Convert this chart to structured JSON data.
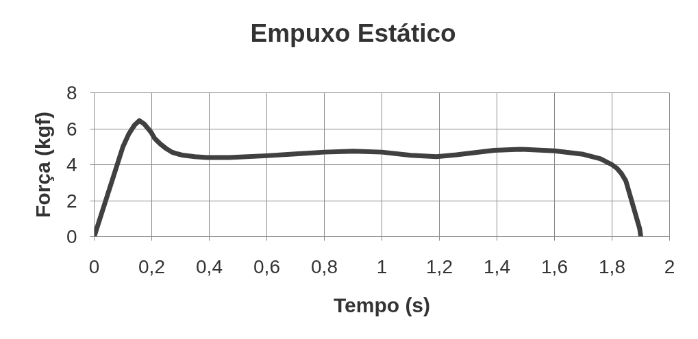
{
  "chart_data": {
    "type": "line",
    "title": "Empuxo Estático",
    "xlabel": "Tempo (s)",
    "ylabel": "Força (kgf)",
    "x": [
      0,
      0.04,
      0.08,
      0.1,
      0.12,
      0.14,
      0.157,
      0.175,
      0.198,
      0.21,
      0.23,
      0.25,
      0.27,
      0.29,
      0.31,
      0.35,
      0.39,
      0.47,
      0.6,
      0.7,
      0.8,
      0.9,
      1.0,
      1.1,
      1.19,
      1.26,
      1.39,
      1.48,
      1.6,
      1.7,
      1.76,
      1.8,
      1.817,
      1.833,
      1.848,
      1.868,
      1.896,
      1.9
    ],
    "series": [
      {
        "color": "#404040",
        "values": [
          0,
          2.0,
          4.0,
          5.0,
          5.7,
          6.2,
          6.45,
          6.25,
          5.8,
          5.47,
          5.15,
          4.9,
          4.7,
          4.6,
          4.52,
          4.45,
          4.4,
          4.4,
          4.5,
          4.6,
          4.7,
          4.75,
          4.7,
          4.52,
          4.45,
          4.55,
          4.8,
          4.86,
          4.77,
          4.58,
          4.33,
          4.0,
          3.8,
          3.5,
          3.1,
          2.0,
          0.45,
          0
        ]
      }
    ],
    "xlim": [
      0,
      2
    ],
    "ylim": [
      0,
      8
    ],
    "xticks": [
      0,
      {
        "value": 0.2,
        "label": "0,2"
      },
      {
        "value": 0.4,
        "label": "0,4"
      },
      {
        "value": 0.6,
        "label": "0,6"
      },
      {
        "value": 0.8,
        "label": "0,8"
      },
      1,
      {
        "value": 1.2,
        "label": "1,2"
      },
      {
        "value": 1.4,
        "label": "1,4"
      },
      {
        "value": 1.6,
        "label": "1,6"
      },
      {
        "value": 1.8,
        "label": "1,8"
      },
      2
    ],
    "yticks": [
      0,
      2,
      4,
      6,
      8
    ],
    "grid": true,
    "line_style": "solid"
  }
}
